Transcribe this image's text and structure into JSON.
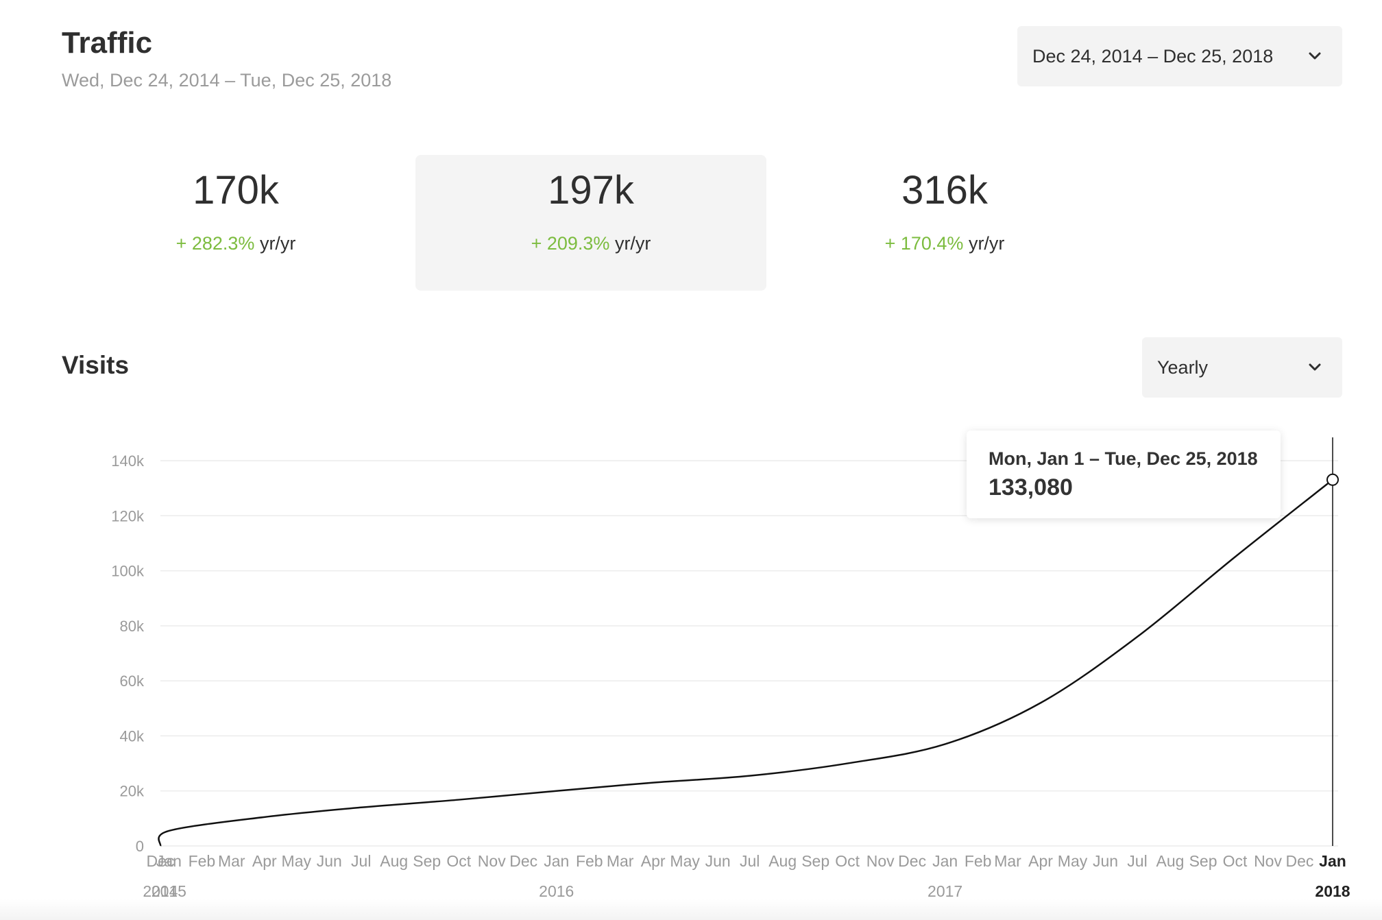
{
  "header": {
    "title": "Traffic",
    "subtitle": "Wed, Dec 24, 2014 – Tue, Dec 25, 2018",
    "range_dropdown": {
      "label": "Dec 24, 2014 – Dec 25, 2018",
      "icon": "chevron-down-icon"
    }
  },
  "stats": [
    {
      "value": "170k",
      "change": "+ 282.3%",
      "unit": "yr/yr",
      "active": false
    },
    {
      "value": "197k",
      "change": "+ 209.3%",
      "unit": "yr/yr",
      "active": true
    },
    {
      "value": "316k",
      "change": "+ 170.4%",
      "unit": "yr/yr",
      "active": false
    }
  ],
  "colors": {
    "positive": "#7cbc3f",
    "line": "#111111",
    "grid": "#ececec"
  },
  "visits": {
    "title": "Visits",
    "period_dropdown": {
      "label": "Yearly",
      "icon": "chevron-down-icon"
    }
  },
  "tooltip": {
    "range": "Mon, Jan 1 – Tue, Dec 25, 2018",
    "value": "133,080"
  },
  "chart_data": {
    "type": "line",
    "y_ticks": [
      "0",
      "20k",
      "40k",
      "60k",
      "80k",
      "100k",
      "120k",
      "140k"
    ],
    "ylim": [
      0,
      140000
    ],
    "month_ticks": [
      "Dec",
      "Jan",
      "Feb",
      "Mar",
      "Apr",
      "May",
      "Jun",
      "Jul",
      "Aug",
      "Sep",
      "Oct",
      "Nov",
      "Dec",
      "Jan",
      "Feb",
      "Mar",
      "Apr",
      "May",
      "Jun",
      "Jul",
      "Aug",
      "Sep",
      "Oct",
      "Nov",
      "Dec",
      "Jan",
      "Feb",
      "Mar",
      "Apr",
      "May",
      "Jun",
      "Jul",
      "Aug",
      "Sep",
      "Oct",
      "Nov",
      "Dec",
      "Jan"
    ],
    "year_ticks": [
      "2014",
      "2015",
      "2016",
      "2017",
      "2018"
    ],
    "highlight_tick": "Jan",
    "highlight_year": "2018",
    "series": [
      {
        "values": [
          {
            "x": "2014-12-24",
            "y": 0
          },
          {
            "x": "2015-01-01",
            "y": 5500
          },
          {
            "x": "2015-04-01",
            "y": 10500
          },
          {
            "x": "2015-07-01",
            "y": 14000
          },
          {
            "x": "2015-10-01",
            "y": 16800
          },
          {
            "x": "2016-01-01",
            "y": 20000
          },
          {
            "x": "2016-04-01",
            "y": 23000
          },
          {
            "x": "2016-07-01",
            "y": 25500
          },
          {
            "x": "2016-10-01",
            "y": 30000
          },
          {
            "x": "2017-01-01",
            "y": 37000
          },
          {
            "x": "2017-04-01",
            "y": 52000
          },
          {
            "x": "2017-07-01",
            "y": 76000
          },
          {
            "x": "2017-10-01",
            "y": 105000
          },
          {
            "x": "2018-01-01",
            "y": 133080
          }
        ]
      }
    ],
    "grid": true,
    "legend": "none"
  }
}
